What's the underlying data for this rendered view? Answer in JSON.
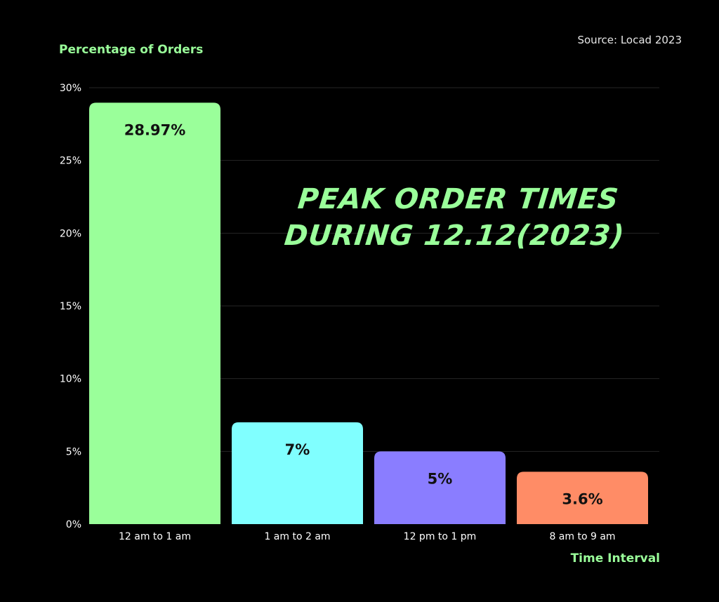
{
  "source": "Source: Locad 2023",
  "title_line1": "PEAK ORDER TIMES",
  "title_line2": "DURING 12.12(2023)",
  "colors": {
    "background": "#000000",
    "accent": "#9aff9a",
    "text": "#ffffff",
    "bar_label": "#111111"
  },
  "chart_data": {
    "type": "bar",
    "title": "PEAK ORDER TIMES DURING 12.12(2023)",
    "xlabel": "Time Interval",
    "ylabel": "Percentage of Orders",
    "categories": [
      "12 am to 1 am",
      "1 am to 2 am",
      "12 pm to 1 pm",
      "8 am to 9 am"
    ],
    "values": [
      28.97,
      7,
      5,
      3.6
    ],
    "data_labels": [
      "28.97%",
      "7%",
      "5%",
      "3.6%"
    ],
    "bar_colors": [
      "#9aff9a",
      "#80ffff",
      "#8a7dff",
      "#ff8c66"
    ],
    "ylim": [
      0,
      30
    ],
    "yticks": [
      0,
      5,
      10,
      15,
      20,
      25,
      30
    ],
    "ytick_labels": [
      "0%",
      "5%",
      "10%",
      "15%",
      "20%",
      "25%",
      "30%"
    ],
    "grid": true,
    "legend": false
  }
}
